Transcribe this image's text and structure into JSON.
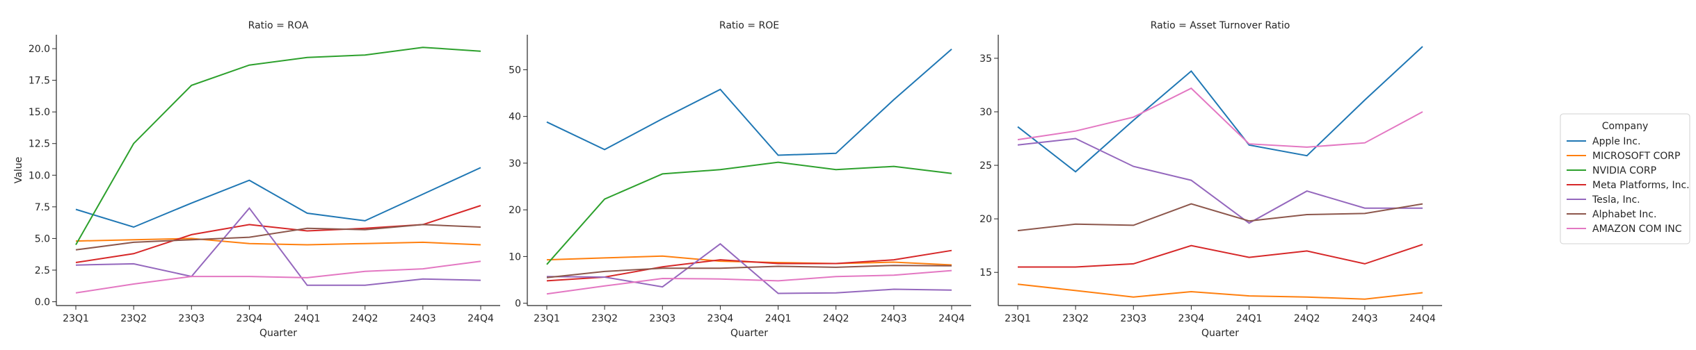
{
  "chart_data": {
    "type": "line",
    "xlabel": "Quarter",
    "ylabel": "Value",
    "categories": [
      "23Q1",
      "23Q2",
      "23Q3",
      "23Q4",
      "24Q1",
      "24Q2",
      "24Q3",
      "24Q4"
    ],
    "legend": {
      "title": "Company",
      "placement": "right",
      "entries": [
        "Apple Inc.",
        "MICROSOFT CORP",
        "NVIDIA CORP",
        "Meta Platforms, Inc.",
        "Tesla, Inc.",
        "Alphabet Inc.",
        "AMAZON COM INC"
      ]
    },
    "colors": {
      "Apple Inc.": "#1f77b4",
      "MICROSOFT CORP": "#ff7f0e",
      "NVIDIA CORP": "#2ca02c",
      "Meta Platforms, Inc.": "#d62728",
      "Tesla, Inc.": "#9467bd",
      "Alphabet Inc.": "#8c564b",
      "AMAZON COM INC": "#e377c2"
    },
    "panels": [
      {
        "title": "Ratio = ROA",
        "ylim": [
          -0.3,
          21.1
        ],
        "yticks": [
          0.0,
          2.5,
          5.0,
          7.5,
          10.0,
          12.5,
          15.0,
          17.5,
          20.0
        ],
        "ytick_labels": [
          "0.0",
          "2.5",
          "5.0",
          "7.5",
          "10.0",
          "12.5",
          "15.0",
          "17.5",
          "20.0"
        ],
        "series": [
          {
            "name": "Apple Inc.",
            "values": [
              7.3,
              5.9,
              7.8,
              9.6,
              7.0,
              6.4,
              8.5,
              10.6
            ]
          },
          {
            "name": "MICROSOFT CORP",
            "values": [
              4.8,
              4.9,
              5.0,
              4.6,
              4.5,
              4.6,
              4.7,
              4.5
            ]
          },
          {
            "name": "NVIDIA CORP",
            "values": [
              4.5,
              12.5,
              17.1,
              18.7,
              19.3,
              19.5,
              20.1,
              19.8
            ]
          },
          {
            "name": "Meta Platforms, Inc.",
            "values": [
              3.1,
              3.8,
              5.3,
              6.1,
              5.6,
              5.8,
              6.1,
              7.6
            ]
          },
          {
            "name": "Tesla, Inc.",
            "values": [
              2.9,
              3.0,
              2.0,
              7.4,
              1.3,
              1.3,
              1.8,
              1.7
            ]
          },
          {
            "name": "Alphabet Inc.",
            "values": [
              4.1,
              4.7,
              4.9,
              5.1,
              5.8,
              5.7,
              6.1,
              5.9
            ]
          },
          {
            "name": "AMAZON COM INC",
            "values": [
              0.7,
              1.4,
              2.0,
              2.0,
              1.9,
              2.4,
              2.6,
              3.2
            ]
          }
        ]
      },
      {
        "title": "Ratio = ROE",
        "ylim": [
          -0.5,
          57.5
        ],
        "yticks": [
          0,
          10,
          20,
          30,
          40,
          50
        ],
        "ytick_labels": [
          "0",
          "10",
          "20",
          "30",
          "40",
          "50"
        ],
        "series": [
          {
            "name": "Apple Inc.",
            "values": [
              38.8,
              32.9,
              39.5,
              45.8,
              31.7,
              32.1,
              43.6,
              54.4
            ]
          },
          {
            "name": "MICROSOFT CORP",
            "values": [
              9.3,
              9.7,
              10.1,
              9.0,
              8.7,
              8.5,
              8.8,
              8.2
            ]
          },
          {
            "name": "NVIDIA CORP",
            "values": [
              8.3,
              22.3,
              27.7,
              28.6,
              30.2,
              28.6,
              29.3,
              27.8
            ]
          },
          {
            "name": "Meta Platforms, Inc.",
            "values": [
              4.8,
              5.6,
              7.8,
              9.3,
              8.5,
              8.5,
              9.3,
              11.3
            ]
          },
          {
            "name": "Tesla, Inc.",
            "values": [
              5.7,
              5.6,
              3.5,
              12.7,
              2.1,
              2.2,
              3.0,
              2.8
            ]
          },
          {
            "name": "Alphabet Inc.",
            "values": [
              5.5,
              6.8,
              7.5,
              7.5,
              7.9,
              7.7,
              8.1,
              8.0
            ]
          },
          {
            "name": "AMAZON COM INC",
            "values": [
              2.0,
              3.7,
              5.3,
              5.2,
              4.8,
              5.7,
              6.0,
              7.0
            ]
          }
        ]
      },
      {
        "title": "Ratio = Asset Turnover Ratio",
        "ylim": [
          11.9,
          37.2
        ],
        "yticks": [
          15,
          20,
          25,
          30,
          35
        ],
        "ytick_labels": [
          "15",
          "20",
          "25",
          "30",
          "35"
        ],
        "series": [
          {
            "name": "Apple Inc.",
            "values": [
              28.6,
              24.4,
              29.2,
              33.8,
              26.9,
              25.9,
              31.1,
              36.1
            ]
          },
          {
            "name": "MICROSOFT CORP",
            "values": [
              13.9,
              13.3,
              12.7,
              13.2,
              12.8,
              12.7,
              12.5,
              13.1
            ]
          },
          {
            "name": "NVIDIA CORP",
            "values": []
          },
          {
            "name": "Meta Platforms, Inc.",
            "values": [
              15.5,
              15.5,
              15.8,
              17.5,
              16.4,
              17.0,
              15.8,
              17.6
            ]
          },
          {
            "name": "Tesla, Inc.",
            "values": [
              26.9,
              27.5,
              24.9,
              23.6,
              19.6,
              22.6,
              21.0,
              21.0
            ]
          },
          {
            "name": "Alphabet Inc.",
            "values": [
              18.9,
              19.5,
              19.4,
              21.4,
              19.8,
              20.4,
              20.5,
              21.4
            ]
          },
          {
            "name": "AMAZON COM INC",
            "values": [
              27.4,
              28.2,
              29.5,
              32.2,
              27.0,
              26.7,
              27.1,
              30.0
            ]
          }
        ]
      }
    ]
  }
}
